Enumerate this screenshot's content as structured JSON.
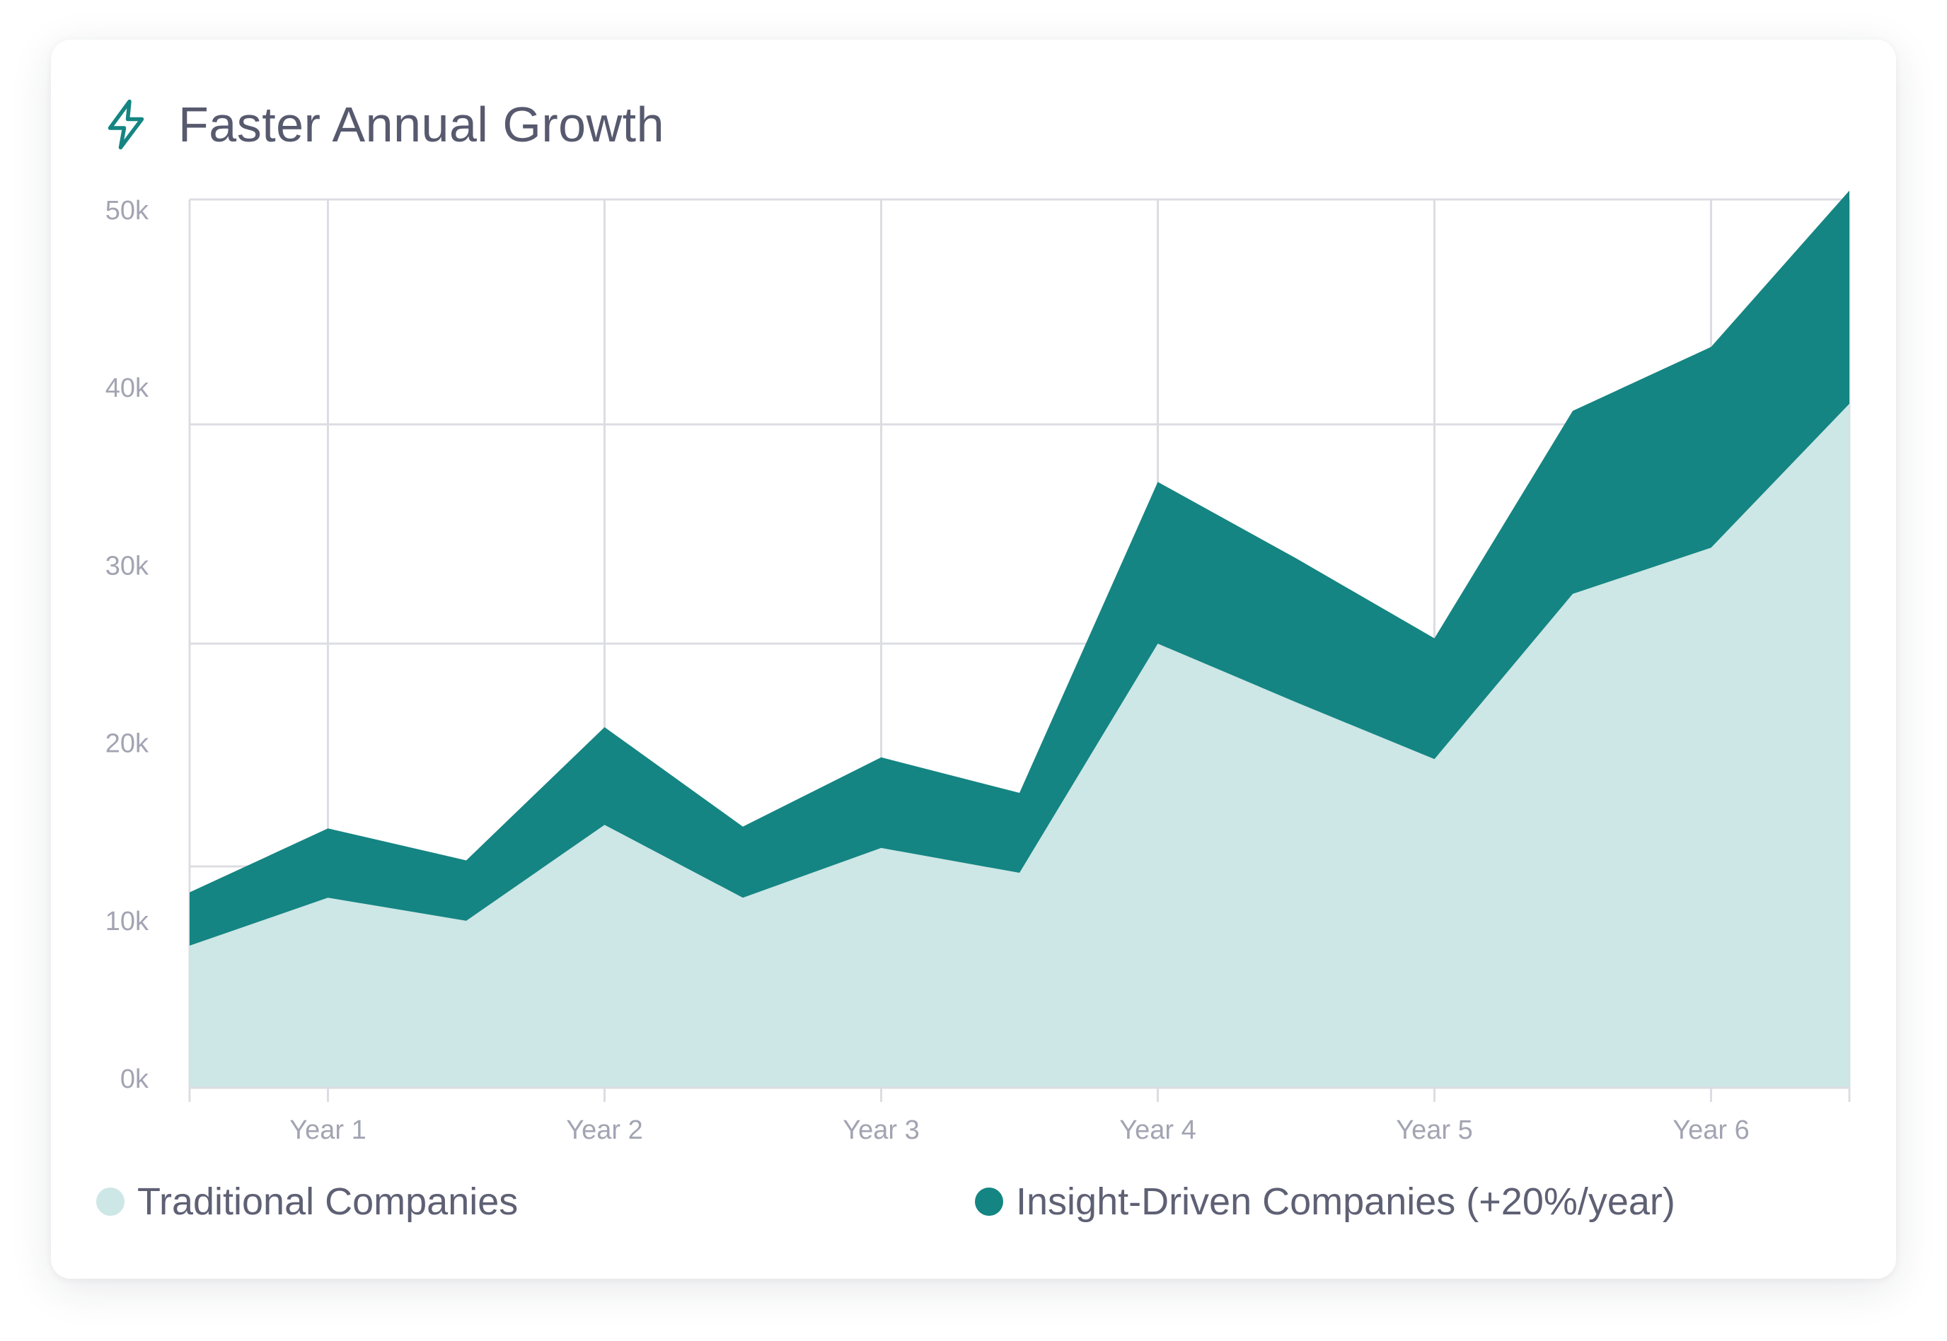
{
  "card": {
    "title": "Faster Annual Growth",
    "icon": "lightning-bolt-icon"
  },
  "colors": {
    "accent": "#148582",
    "traditional": "#cde6e6",
    "insight": "#148582",
    "grid": "#dcdde2",
    "tick_text": "#a2a4b2",
    "title_text": "#575a6e"
  },
  "chart_data": {
    "type": "area",
    "title": "Faster Annual Growth",
    "xlabel": "",
    "ylabel": "",
    "ylim": [
      0,
      50000
    ],
    "grid": true,
    "y_ticks": [
      0,
      10000,
      20000,
      30000,
      40000,
      50000
    ],
    "y_tick_labels": [
      "0k",
      "10k",
      "20k",
      "30k",
      "40k",
      "50k"
    ],
    "x_tick_positions": [
      1,
      2,
      3,
      4,
      5,
      6
    ],
    "x_tick_labels": [
      "Year 1",
      "Year 2",
      "Year 3",
      "Year 4",
      "Year 5",
      "Year 6"
    ],
    "x_range": [
      0.5,
      6.5
    ],
    "x": [
      0.5,
      1,
      1.5,
      2,
      2.5,
      3,
      3.5,
      4,
      4.5,
      5,
      5.5,
      6,
      6.5
    ],
    "series": [
      {
        "name": "Traditional Companies",
        "values": [
          8000,
          10700,
          9400,
          14800,
          10700,
          13500,
          12100,
          25000,
          21700,
          18500,
          27800,
          30400,
          38500
        ]
      },
      {
        "name": "Insight-Driven Companies (+20%/year)",
        "values": [
          11000,
          14600,
          12800,
          20300,
          14700,
          18600,
          16600,
          34100,
          29800,
          25300,
          38100,
          41700,
          50500
        ]
      }
    ],
    "legend_position": "bottom"
  }
}
